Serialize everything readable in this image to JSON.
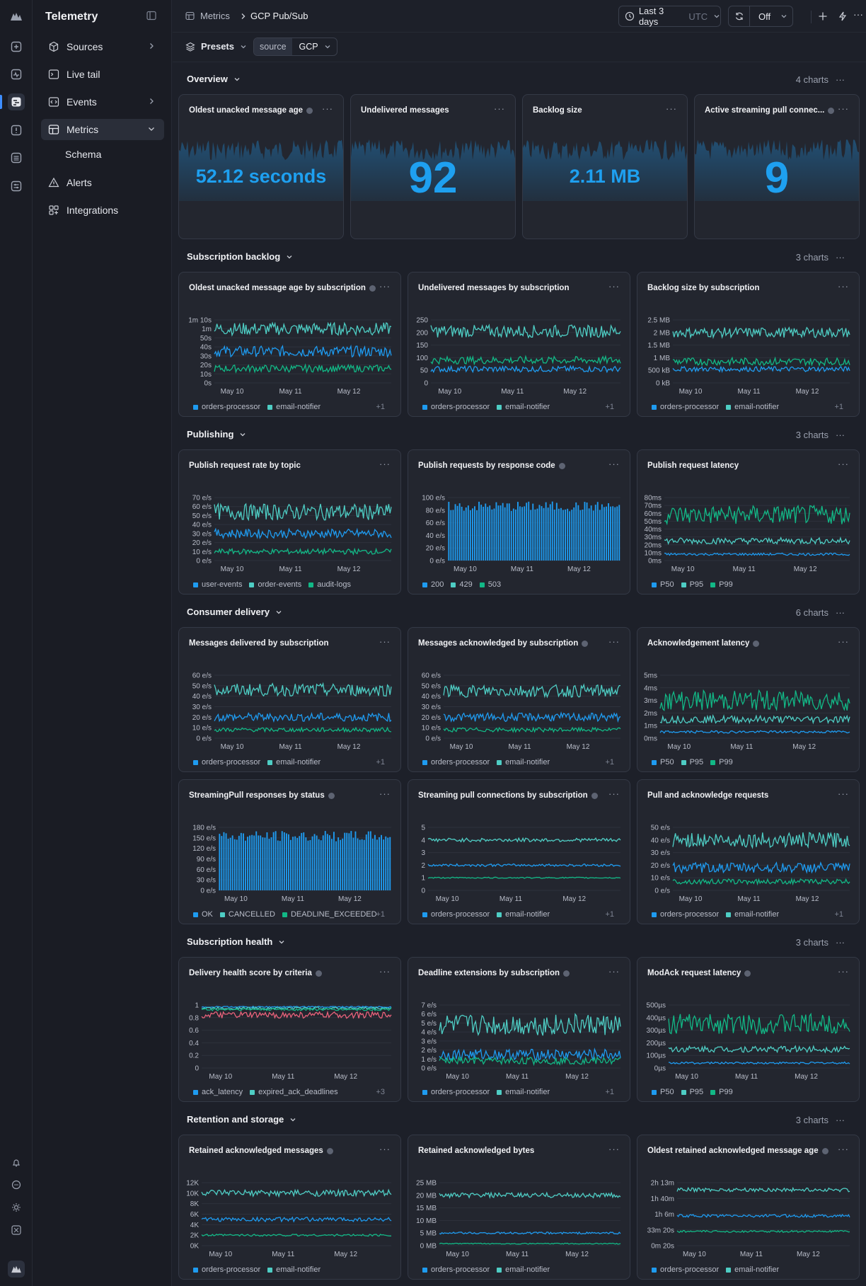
{
  "app": {
    "title": "Telemetry"
  },
  "colors": {
    "bg": "#1d2029",
    "card": "#23262f",
    "teal": "#4ecdc4",
    "blue": "#1e9bf0",
    "green": "#12b886",
    "pink": "#e8627a",
    "accent": "#1ea0f0"
  },
  "nav": {
    "items": [
      {
        "label": "Sources",
        "icon": "cube-icon"
      },
      {
        "label": "Live tail",
        "icon": "terminal-icon"
      },
      {
        "label": "Events",
        "icon": "code-icon"
      },
      {
        "label": "Metrics",
        "icon": "table-icon"
      },
      {
        "label": "Schema",
        "icon": ""
      },
      {
        "label": "Alerts",
        "icon": "warning-icon"
      },
      {
        "label": "Integrations",
        "icon": "grid-plus-icon"
      }
    ]
  },
  "header": {
    "breadcrumb": [
      "Metrics",
      "GCP Pub/Sub"
    ],
    "time_range": "Last 3 days",
    "timezone": "UTC",
    "refresh": "Off"
  },
  "filters": {
    "presets": "Presets",
    "key": "source",
    "value": "GCP"
  },
  "sections": [
    {
      "title": "Overview",
      "count": "4 charts"
    },
    {
      "title": "Subscription backlog",
      "count": "3 charts"
    },
    {
      "title": "Publishing",
      "count": "3 charts"
    },
    {
      "title": "Consumer delivery",
      "count": "6 charts"
    },
    {
      "title": "Subscription health",
      "count": "3 charts"
    },
    {
      "title": "Retention and storage",
      "count": "3 charts"
    }
  ],
  "stats": [
    {
      "title": "Oldest unacked message age",
      "value": "52.12 seconds",
      "info": true
    },
    {
      "title": "Undelivered messages",
      "value": "92",
      "info": false
    },
    {
      "title": "Backlog size",
      "value": "2.11 MB",
      "info": false
    },
    {
      "title": "Active streaming pull connec...",
      "value": "9",
      "info": true
    }
  ],
  "chart_data": [
    {
      "title": "Oldest unacked message age by subscription",
      "type": "line",
      "info": true,
      "x_ticks": [
        "May 10",
        "May 11",
        "May 12"
      ],
      "y_ticks": [
        "0s",
        "10s",
        "20s",
        "30s",
        "40s",
        "50s",
        "1m",
        "1m 10s"
      ],
      "y_max": 70,
      "series": [
        {
          "name": "orders-processor",
          "color": "#1e9bf0",
          "level": 35,
          "amp": 6
        },
        {
          "name": "email-notifier",
          "color": "#4ecdc4",
          "level": 60,
          "amp": 7
        },
        {
          "name": "",
          "color": "#12b886",
          "level": 16,
          "amp": 4
        }
      ],
      "legend": [
        "orders-processor",
        "email-notifier"
      ],
      "legend_colors": [
        "#1e9bf0",
        "#4ecdc4"
      ],
      "more": "+1"
    },
    {
      "title": "Undelivered messages by subscription",
      "type": "line",
      "info": false,
      "x_ticks": [
        "May 10",
        "May 11",
        "May 12"
      ],
      "y_ticks": [
        "0",
        "50",
        "100",
        "150",
        "200",
        "250"
      ],
      "y_max": 250,
      "series": [
        {
          "name": "orders-processor",
          "color": "#1e9bf0",
          "level": 55,
          "amp": 12
        },
        {
          "name": "email-notifier",
          "color": "#4ecdc4",
          "level": 205,
          "amp": 25
        },
        {
          "name": "",
          "color": "#12b886",
          "level": 90,
          "amp": 15
        }
      ],
      "legend": [
        "orders-processor",
        "email-notifier"
      ],
      "legend_colors": [
        "#1e9bf0",
        "#4ecdc4"
      ],
      "more": "+1"
    },
    {
      "title": "Backlog size by subscription",
      "type": "line",
      "info": false,
      "x_ticks": [
        "May 10",
        "May 11",
        "May 12"
      ],
      "y_ticks": [
        "0 kB",
        "500 kB",
        "1 MB",
        "1.5 MB",
        "2 MB",
        "2.5 MB"
      ],
      "y_max": 2.5,
      "series": [
        {
          "name": "orders-processor",
          "color": "#1e9bf0",
          "level": 0.55,
          "amp": 0.1
        },
        {
          "name": "email-notifier",
          "color": "#4ecdc4",
          "level": 2.0,
          "amp": 0.2
        },
        {
          "name": "",
          "color": "#12b886",
          "level": 0.85,
          "amp": 0.15
        }
      ],
      "legend": [
        "orders-processor",
        "email-notifier"
      ],
      "legend_colors": [
        "#1e9bf0",
        "#4ecdc4"
      ],
      "more": "+1"
    },
    {
      "title": "Publish request rate by topic",
      "type": "line",
      "info": false,
      "x_ticks": [
        "May 10",
        "May 11",
        "May 12"
      ],
      "y_ticks": [
        "0 e/s",
        "10 e/s",
        "20 e/s",
        "30 e/s",
        "40 e/s",
        "50 e/s",
        "60 e/s",
        "70 e/s"
      ],
      "y_max": 70,
      "series": [
        {
          "name": "user-events",
          "color": "#1e9bf0",
          "level": 30,
          "amp": 5
        },
        {
          "name": "order-events",
          "color": "#4ecdc4",
          "level": 54,
          "amp": 9
        },
        {
          "name": "audit-logs",
          "color": "#12b886",
          "level": 10,
          "amp": 3
        }
      ],
      "legend": [
        "user-events",
        "order-events",
        "audit-logs"
      ],
      "legend_colors": [
        "#1e9bf0",
        "#4ecdc4",
        "#12b886"
      ],
      "more": ""
    },
    {
      "title": "Publish requests by response code",
      "type": "bar",
      "info": true,
      "x_ticks": [
        "May 10",
        "May 11",
        "May 12"
      ],
      "y_ticks": [
        "0 e/s",
        "20 e/s",
        "40 e/s",
        "60 e/s",
        "80 e/s",
        "100 e/s"
      ],
      "y_max": 100,
      "series": [
        {
          "name": "200",
          "color": "#1e9bf0",
          "level": 86,
          "amp": 8
        }
      ],
      "legend": [
        "200",
        "429",
        "503"
      ],
      "legend_colors": [
        "#1e9bf0",
        "#4ecdc4",
        "#12b886"
      ],
      "more": ""
    },
    {
      "title": "Publish request latency",
      "type": "line",
      "info": false,
      "x_ticks": [
        "May 10",
        "May 11",
        "May 12"
      ],
      "y_ticks": [
        "0ms",
        "10ms",
        "20ms",
        "30ms",
        "40ms",
        "50ms",
        "60ms",
        "70ms",
        "80ms"
      ],
      "y_max": 80,
      "series": [
        {
          "name": "P50",
          "color": "#1e9bf0",
          "level": 8,
          "amp": 1.5
        },
        {
          "name": "P95",
          "color": "#4ecdc4",
          "level": 25,
          "amp": 4
        },
        {
          "name": "P99",
          "color": "#12b886",
          "level": 58,
          "amp": 12
        }
      ],
      "legend": [
        "P50",
        "P95",
        "P99"
      ],
      "legend_colors": [
        "#1e9bf0",
        "#4ecdc4",
        "#12b886"
      ],
      "more": ""
    },
    {
      "title": "Messages delivered by subscription",
      "type": "line",
      "info": false,
      "x_ticks": [
        "May 10",
        "May 11",
        "May 12"
      ],
      "y_ticks": [
        "0 e/s",
        "10 e/s",
        "20 e/s",
        "30 e/s",
        "40 e/s",
        "50 e/s",
        "60 e/s"
      ],
      "y_max": 60,
      "series": [
        {
          "name": "orders-processor",
          "color": "#1e9bf0",
          "level": 20,
          "amp": 4
        },
        {
          "name": "email-notifier",
          "color": "#4ecdc4",
          "level": 46,
          "amp": 6
        },
        {
          "name": "",
          "color": "#12b886",
          "level": 8,
          "amp": 2
        }
      ],
      "legend": [
        "orders-processor",
        "email-notifier"
      ],
      "legend_colors": [
        "#1e9bf0",
        "#4ecdc4"
      ],
      "more": "+1"
    },
    {
      "title": "Messages acknowledged by subscription",
      "type": "line",
      "info": true,
      "x_ticks": [
        "May 10",
        "May 11",
        "May 12"
      ],
      "y_ticks": [
        "0 e/s",
        "10 e/s",
        "20 e/s",
        "30 e/s",
        "40 e/s",
        "50 e/s",
        "60 e/s"
      ],
      "y_max": 60,
      "series": [
        {
          "name": "orders-processor",
          "color": "#1e9bf0",
          "level": 20,
          "amp": 4
        },
        {
          "name": "email-notifier",
          "color": "#4ecdc4",
          "level": 45,
          "amp": 6
        },
        {
          "name": "",
          "color": "#12b886",
          "level": 8,
          "amp": 2
        }
      ],
      "legend": [
        "orders-processor",
        "email-notifier"
      ],
      "legend_colors": [
        "#1e9bf0",
        "#4ecdc4"
      ],
      "more": "+1"
    },
    {
      "title": "Acknowledgement latency",
      "type": "line",
      "info": true,
      "x_ticks": [
        "May 10",
        "May 11",
        "May 12"
      ],
      "y_ticks": [
        "0ms",
        "1ms",
        "2ms",
        "3ms",
        "4ms",
        "5ms"
      ],
      "y_max": 5,
      "series": [
        {
          "name": "P50",
          "color": "#1e9bf0",
          "level": 0.5,
          "amp": 0.1
        },
        {
          "name": "P95",
          "color": "#4ecdc4",
          "level": 1.5,
          "amp": 0.3
        },
        {
          "name": "P99",
          "color": "#12b886",
          "level": 3.0,
          "amp": 0.8
        }
      ],
      "legend": [
        "P50",
        "P95",
        "P99"
      ],
      "legend_colors": [
        "#1e9bf0",
        "#4ecdc4",
        "#12b886"
      ],
      "more": ""
    },
    {
      "title": "StreamingPull responses by status",
      "type": "bar",
      "info": true,
      "x_ticks": [
        "May 10",
        "May 11",
        "May 12"
      ],
      "y_ticks": [
        "0 e/s",
        "30 e/s",
        "60 e/s",
        "90 e/s",
        "120 e/s",
        "150 e/s",
        "180 e/s"
      ],
      "y_max": 180,
      "series": [
        {
          "name": "OK",
          "color": "#1e9bf0",
          "level": 155,
          "amp": 15
        }
      ],
      "legend": [
        "OK",
        "CANCELLED",
        "DEADLINE_EXCEEDED"
      ],
      "legend_colors": [
        "#1e9bf0",
        "#4ecdc4",
        "#12b886"
      ],
      "more": "+1"
    },
    {
      "title": "Streaming pull connections by subscription",
      "type": "line",
      "info": true,
      "x_ticks": [
        "May 10",
        "May 11",
        "May 12"
      ],
      "y_ticks": [
        "0",
        "1",
        "2",
        "3",
        "4",
        "5"
      ],
      "y_max": 5,
      "series": [
        {
          "name": "orders-processor",
          "color": "#1e9bf0",
          "level": 2,
          "amp": 0.1
        },
        {
          "name": "email-notifier",
          "color": "#4ecdc4",
          "level": 4,
          "amp": 0.15
        },
        {
          "name": "",
          "color": "#12b886",
          "level": 1,
          "amp": 0.05
        }
      ],
      "legend": [
        "orders-processor",
        "email-notifier"
      ],
      "legend_colors": [
        "#1e9bf0",
        "#4ecdc4"
      ],
      "more": "+1"
    },
    {
      "title": "Pull and acknowledge requests",
      "type": "line",
      "info": false,
      "x_ticks": [
        "May 10",
        "May 11",
        "May 12"
      ],
      "y_ticks": [
        "0 e/s",
        "10 e/s",
        "20 e/s",
        "30 e/s",
        "40 e/s",
        "50 e/s"
      ],
      "y_max": 50,
      "series": [
        {
          "name": "orders-processor",
          "color": "#1e9bf0",
          "level": 18,
          "amp": 4
        },
        {
          "name": "email-notifier",
          "color": "#4ecdc4",
          "level": 40,
          "amp": 6
        },
        {
          "name": "",
          "color": "#12b886",
          "level": 7,
          "amp": 2
        }
      ],
      "legend": [
        "orders-processor",
        "email-notifier"
      ],
      "legend_colors": [
        "#1e9bf0",
        "#4ecdc4"
      ],
      "more": "+1"
    },
    {
      "title": "Delivery health score by criteria",
      "type": "line",
      "info": true,
      "x_ticks": [
        "May 10",
        "May 11",
        "May 12"
      ],
      "y_ticks": [
        "0",
        "0.2",
        "0.4",
        "0.6",
        "0.8",
        "1"
      ],
      "y_max": 1,
      "series": [
        {
          "name": "ack_latency",
          "color": "#1e9bf0",
          "level": 0.97,
          "amp": 0.01
        },
        {
          "name": "expired_ack_deadlines",
          "color": "#4ecdc4",
          "level": 0.95,
          "amp": 0.02
        },
        {
          "name": "",
          "color": "#12b886",
          "level": 0.93,
          "amp": 0.02
        },
        {
          "name": "",
          "color": "#e8627a",
          "level": 0.84,
          "amp": 0.05
        }
      ],
      "legend": [
        "ack_latency",
        "expired_ack_deadlines"
      ],
      "legend_colors": [
        "#1e9bf0",
        "#4ecdc4"
      ],
      "more": "+3"
    },
    {
      "title": "Deadline extensions by subscription",
      "type": "line",
      "info": true,
      "x_ticks": [
        "May 10",
        "May 11",
        "May 12"
      ],
      "y_ticks": [
        "0 e/s",
        "1 e/s",
        "2 e/s",
        "3 e/s",
        "4 e/s",
        "5 e/s",
        "6 e/s",
        "7 e/s"
      ],
      "y_max": 7,
      "series": [
        {
          "name": "orders-processor",
          "color": "#1e9bf0",
          "level": 1.5,
          "amp": 0.6
        },
        {
          "name": "email-notifier",
          "color": "#4ecdc4",
          "level": 4.8,
          "amp": 1.2
        },
        {
          "name": "",
          "color": "#12b886",
          "level": 0.8,
          "amp": 0.4
        }
      ],
      "legend": [
        "orders-processor",
        "email-notifier"
      ],
      "legend_colors": [
        "#1e9bf0",
        "#4ecdc4"
      ],
      "more": "+1"
    },
    {
      "title": "ModAck request latency",
      "type": "line",
      "info": true,
      "x_ticks": [
        "May 10",
        "May 11",
        "May 12"
      ],
      "y_ticks": [
        "0µs",
        "100µs",
        "200µs",
        "300µs",
        "400µs",
        "500µs"
      ],
      "y_max": 500,
      "series": [
        {
          "name": "P50",
          "color": "#1e9bf0",
          "level": 40,
          "amp": 8
        },
        {
          "name": "P95",
          "color": "#4ecdc4",
          "level": 150,
          "amp": 25
        },
        {
          "name": "P99",
          "color": "#12b886",
          "level": 350,
          "amp": 80
        }
      ],
      "legend": [
        "P50",
        "P95",
        "P99"
      ],
      "legend_colors": [
        "#1e9bf0",
        "#4ecdc4",
        "#12b886"
      ],
      "more": ""
    },
    {
      "title": "Retained acknowledged messages",
      "type": "line",
      "info": true,
      "x_ticks": [
        "May 10",
        "May 11",
        "May 12"
      ],
      "y_ticks": [
        "0K",
        "2K",
        "4K",
        "6K",
        "8K",
        "10K",
        "12K"
      ],
      "y_max": 12000,
      "series": [
        {
          "name": "orders-processor",
          "color": "#1e9bf0",
          "level": 5000,
          "amp": 400
        },
        {
          "name": "email-notifier",
          "color": "#4ecdc4",
          "level": 10000,
          "amp": 600
        },
        {
          "name": "",
          "color": "#12b886",
          "level": 2000,
          "amp": 200
        }
      ],
      "legend": [
        "orders-processor",
        "email-notifier"
      ],
      "legend_colors": [
        "#1e9bf0",
        "#4ecdc4"
      ],
      "more": ""
    },
    {
      "title": "Retained acknowledged bytes",
      "type": "line",
      "info": false,
      "x_ticks": [
        "May 10",
        "May 11",
        "May 12"
      ],
      "y_ticks": [
        "0 MB",
        "5 MB",
        "10 MB",
        "15 MB",
        "20 MB",
        "25 MB"
      ],
      "y_max": 25,
      "series": [
        {
          "name": "orders-processor",
          "color": "#1e9bf0",
          "level": 5,
          "amp": 0.4
        },
        {
          "name": "email-notifier",
          "color": "#4ecdc4",
          "level": 20,
          "amp": 1
        },
        {
          "name": "",
          "color": "#12b886",
          "level": 0.8,
          "amp": 0.2
        }
      ],
      "legend": [
        "orders-processor",
        "email-notifier"
      ],
      "legend_colors": [
        "#1e9bf0",
        "#4ecdc4"
      ],
      "more": ""
    },
    {
      "title": "Oldest retained acknowledged message age",
      "type": "line",
      "info": true,
      "x_ticks": [
        "May 10",
        "May 11",
        "May 12"
      ],
      "y_ticks": [
        "0m 20s",
        "33m 20s",
        "1h 6m",
        "1h 40m",
        "2h 13m"
      ],
      "y_max": 133,
      "series": [
        {
          "name": "orders-processor",
          "color": "#1e9bf0",
          "level": 63,
          "amp": 3
        },
        {
          "name": "email-notifier",
          "color": "#4ecdc4",
          "level": 118,
          "amp": 4
        },
        {
          "name": "",
          "color": "#12b886",
          "level": 30,
          "amp": 2
        }
      ],
      "legend": [
        "orders-processor",
        "email-notifier"
      ],
      "legend_colors": [
        "#1e9bf0",
        "#4ecdc4"
      ],
      "more": ""
    }
  ]
}
